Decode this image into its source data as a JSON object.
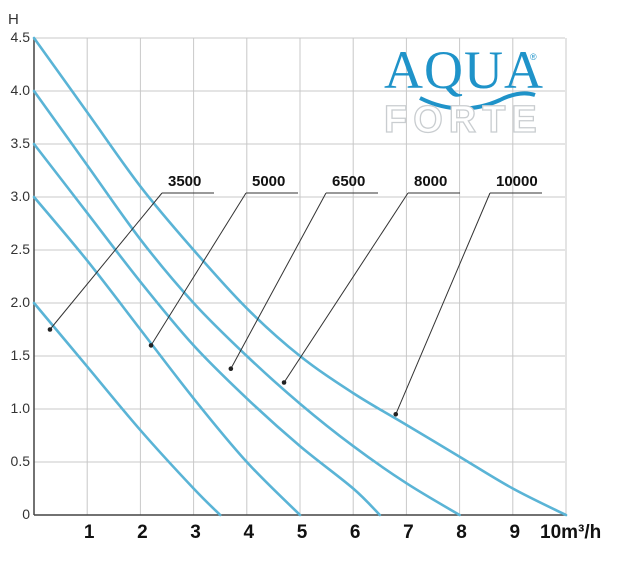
{
  "chart_data": {
    "type": "line",
    "title": "",
    "ylabel": "H",
    "xlabel": "",
    "x_unit_label": "10m³/h",
    "xlim": [
      0,
      10
    ],
    "ylim": [
      0,
      4.5
    ],
    "x_ticks": [
      "1",
      "2",
      "3",
      "4",
      "5",
      "6",
      "7",
      "8",
      "9"
    ],
    "y_ticks": [
      "0",
      "0.5",
      "1.0",
      "1.5",
      "2.0",
      "2.5",
      "3.0",
      "3.5",
      "4.0",
      "4.5"
    ],
    "grid": true,
    "curve_color": "#5ab4d6",
    "series": [
      {
        "name": "3500",
        "x": [
          0,
          1,
          2,
          3,
          3.5
        ],
        "y": [
          2.0,
          1.4,
          0.8,
          0.25,
          0
        ],
        "callout_point": [
          0.3,
          1.75
        ]
      },
      {
        "name": "5000",
        "x": [
          0,
          1,
          2,
          3,
          4,
          5
        ],
        "y": [
          3.0,
          2.4,
          1.75,
          1.1,
          0.5,
          0
        ],
        "callout_point": [
          2.2,
          1.6
        ]
      },
      {
        "name": "6500",
        "x": [
          0,
          1,
          2,
          3,
          4,
          5,
          6,
          6.5
        ],
        "y": [
          3.5,
          2.85,
          2.2,
          1.6,
          1.1,
          0.65,
          0.25,
          0
        ],
        "callout_point": [
          3.7,
          1.38
        ]
      },
      {
        "name": "8000",
        "x": [
          0,
          1,
          2,
          3,
          4,
          5,
          6,
          7,
          8
        ],
        "y": [
          4.0,
          3.3,
          2.6,
          2.0,
          1.5,
          1.05,
          0.65,
          0.3,
          0
        ],
        "callout_point": [
          4.7,
          1.25
        ]
      },
      {
        "name": "10000",
        "x": [
          0,
          1,
          2,
          3,
          4,
          5,
          6,
          7,
          8,
          9,
          10
        ],
        "y": [
          4.5,
          3.8,
          3.1,
          2.5,
          1.95,
          1.5,
          1.15,
          0.85,
          0.55,
          0.25,
          0
        ],
        "callout_point": [
          6.8,
          0.95
        ]
      }
    ]
  },
  "logo": {
    "top": "AQUA",
    "bottom": "FORTE",
    "registered": "®"
  }
}
